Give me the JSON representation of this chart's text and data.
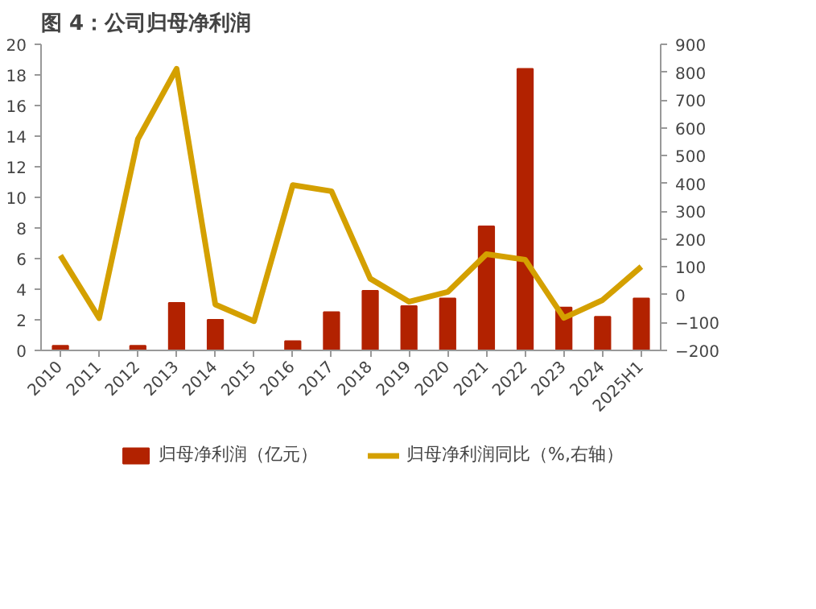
{
  "chart_data": {
    "type": "bar",
    "title": "图 4：公司归母净利润",
    "categories": [
      "2010",
      "2011",
      "2012",
      "2013",
      "2014",
      "2015",
      "2016",
      "2017",
      "2018",
      "2019",
      "2020",
      "2021",
      "2022",
      "2023",
      "2024",
      "2025H1"
    ],
    "series": [
      {
        "name": "归母净利润（亿元）",
        "color": "#b22200",
        "values": [
          0.3,
          0,
          0.3,
          3.1,
          2.0,
          0,
          0.6,
          2.5,
          3.9,
          2.9,
          3.4,
          8.1,
          18.4,
          2.8,
          2.2,
          3.4
        ]
      },
      {
        "name": "归母净利润同比（%,右轴）",
        "type": "line",
        "axis": "y2",
        "color": "#d4a000",
        "values": [
          141,
          -84,
          559,
          812,
          -35,
          -95,
          394,
          372,
          58,
          -25,
          10,
          146,
          126,
          -83,
          -19,
          101
        ]
      }
    ],
    "ylim": [
      0,
      20
    ],
    "yticks": [
      0,
      2,
      4,
      6,
      8,
      10,
      12,
      14,
      16,
      18,
      20
    ],
    "y2lim": [
      -200,
      900
    ],
    "y2ticks": [
      -200,
      -100,
      0,
      100,
      200,
      300,
      400,
      500,
      600,
      700,
      800,
      900
    ],
    "grid": false,
    "legend": "bottom",
    "line_style": "solid",
    "marker": "none"
  }
}
